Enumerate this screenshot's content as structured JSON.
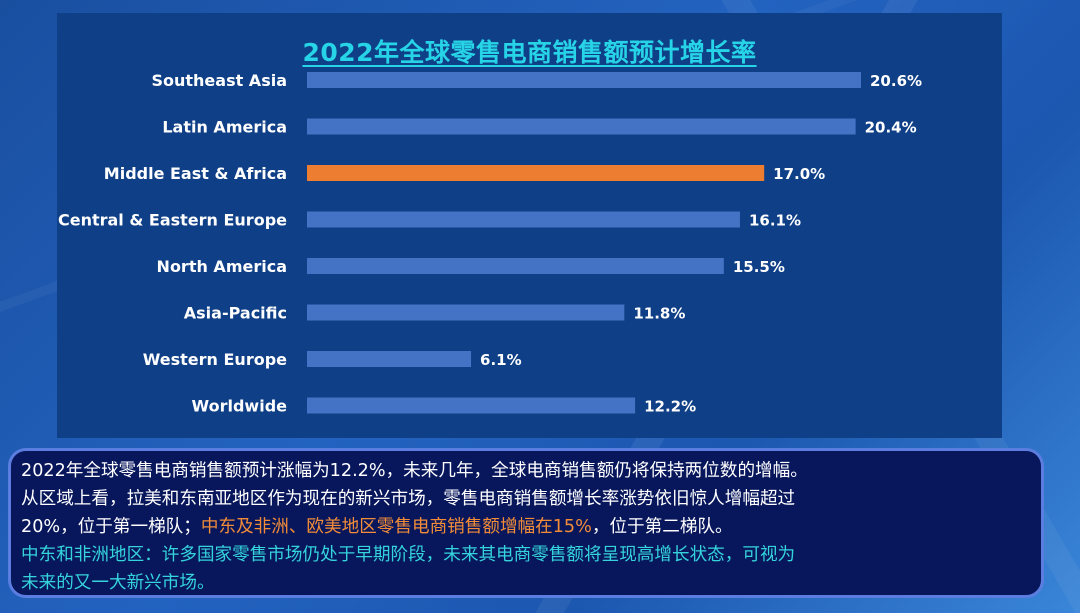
{
  "colors": {
    "bar": "#4472c4",
    "highlight_bar": "#ed7d31",
    "title": "#27d3e6",
    "cyan_text": "#35d4dd",
    "orange_text": "#f28c38"
  },
  "chart_data": {
    "type": "bar",
    "orientation": "horizontal",
    "title": "2022年全球零售电商销售额预计增长率",
    "categories": [
      "Southeast Asia",
      "Latin America",
      "Middle East & Africa",
      "Central & Eastern Europe",
      "North America",
      "Asia-Pacific",
      "Western Europe",
      "Worldwide"
    ],
    "values": [
      20.6,
      20.4,
      17.0,
      16.1,
      15.5,
      11.8,
      6.1,
      12.2
    ],
    "value_labels": [
      "20.6%",
      "20.4%",
      "17.0%",
      "16.1%",
      "15.5%",
      "11.8%",
      "6.1%",
      "12.2%"
    ],
    "highlight_index": 2,
    "xlim": [
      0,
      20.6
    ],
    "grid": false,
    "legend": "none"
  },
  "summary": {
    "line1": "2022年全球零售电商销售额预计涨幅为12.2%，未来几年，全球电商销售额仍将保持两位数的增幅。",
    "line2": "从区域上看，拉美和东南亚地区作为现在的新兴市场，零售电商销售额增长率涨势依旧惊人增幅超过",
    "line3_start": "20%，位于第一梯队；",
    "line3_highlight": "中东及非洲、欧美地区零售电商销售额增幅在15%",
    "line3_end": "，位于第二梯队。",
    "line4": "中东和非洲地区：许多国家零售市场仍处于早期阶段，未来其电商零售额将呈现高增长状态，可视为",
    "line5": "未来的又一大新兴市场。"
  }
}
